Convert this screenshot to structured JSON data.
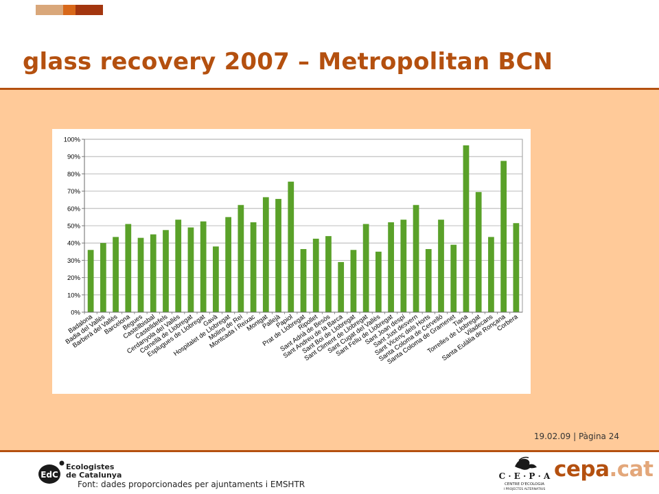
{
  "slide": {
    "title": "glass recovery 2007 – Metropolitan BCN",
    "date_page": "19.02.09 | Pàgina 24",
    "source": "Font: dades proporcionades per ajuntaments i EMSHTR"
  },
  "logos": {
    "edc_mark": "EdC",
    "edc_name_line1": "Ecologistes",
    "edc_name_line2": "de Catalunya",
    "cepa_letters": "C · E · P · A",
    "cepa_sub1": "CENTRE D'ECOLOGIA",
    "cepa_sub2": "I PROJECTES ALTERNATIUS",
    "cepa_word_main": "cepa",
    "cepa_word_ext": ".cat"
  },
  "colors": {
    "accent": "#b4500f",
    "band": "#ffca99",
    "bar": "#5aa129"
  },
  "chart_data": {
    "type": "bar",
    "categories": [
      "Badalona",
      "Badia del Vallès",
      "Barberà del Vallès",
      "Barcelona",
      "Begues",
      "Castellbisbal",
      "Castelldefels",
      "Cerdanyola del Vallès",
      "Cornellà de Llobregat",
      "Esplugues de Llobregat",
      "Gavà",
      "Hospitalet de Llobregat",
      "Molins de Rei",
      "Montcada i Reixac",
      "Montgat",
      "Pallejà",
      "Papiol",
      "Prat de Llobregat",
      "Ripollet",
      "Sant Adrià de Besòs",
      "Sant Andreu de la Barca",
      "Sant Boi de Llobregat",
      "Sant Climent de Llobregat",
      "Sant Cugat del Vallès",
      "Sant Feliu de Llobregat",
      "Sant Joan despí",
      "Sant Just desvern",
      "Sant Vicenç dels Horts",
      "Santa Coloma de Cervelló",
      "Santa Coloma de Gramenet",
      "Tiana",
      "Torrelles de Llobregat",
      "Viladecans",
      "Santa Eulàlia de Ronçana",
      "Corbera"
    ],
    "values": [
      36,
      40,
      43.5,
      51,
      43,
      45,
      47.5,
      53.5,
      49,
      52.5,
      38,
      55,
      62,
      52,
      66.5,
      65.5,
      75.5,
      36.5,
      42.5,
      44,
      29,
      36,
      51,
      35,
      52,
      53.5,
      62,
      36.5,
      53.5,
      39,
      96.5,
      69.5,
      43.5,
      87.5,
      51.5
    ],
    "yticks": [
      "0%",
      "10%",
      "20%",
      "30%",
      "40%",
      "50%",
      "60%",
      "70%",
      "80%",
      "90%",
      "100%"
    ],
    "ylim": [
      0,
      100
    ],
    "grid": true,
    "legend": "none"
  }
}
